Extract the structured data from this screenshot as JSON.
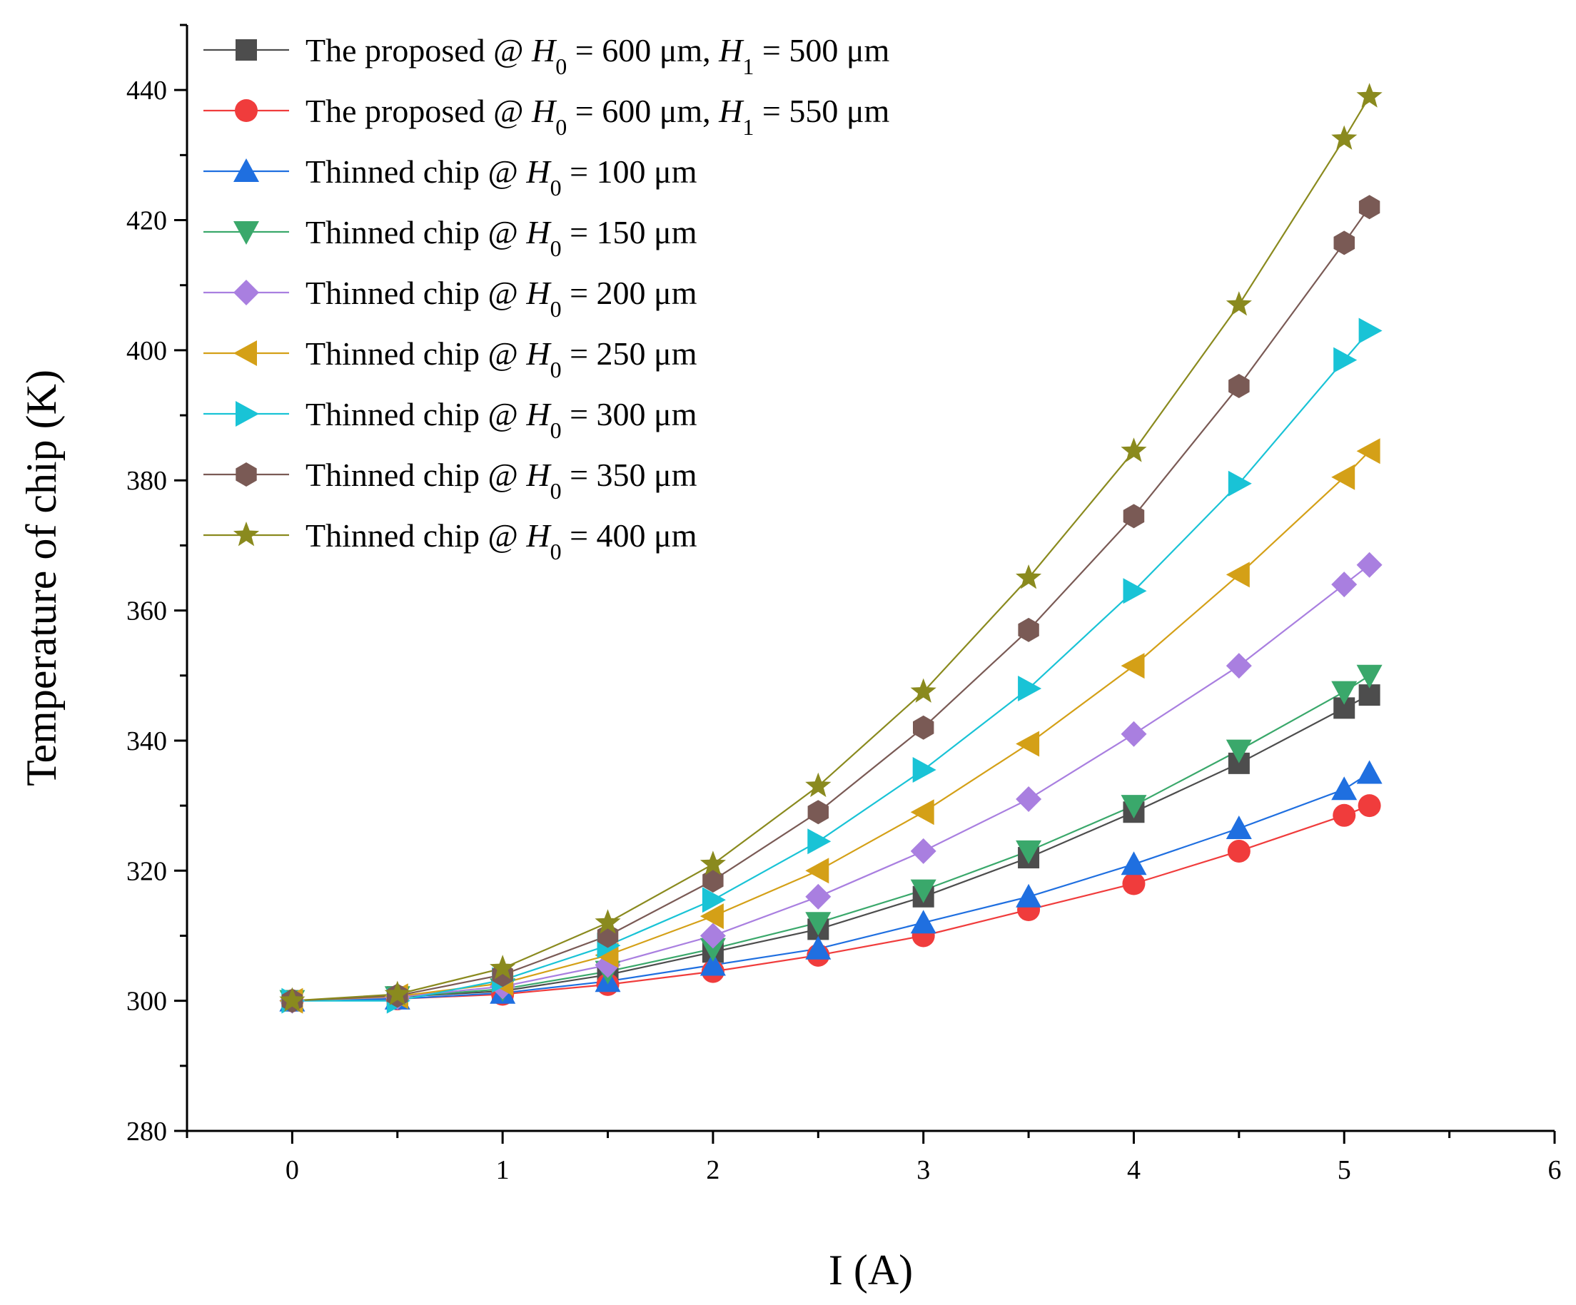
{
  "chart_data": {
    "type": "line",
    "xlabel": "I (A)",
    "ylabel": "Temperature of chip (K)",
    "xlim": [
      -0.5,
      6
    ],
    "ylim": [
      280,
      450
    ],
    "x_ticks": [
      0,
      1,
      2,
      3,
      4,
      5,
      6
    ],
    "x_tick_labels": [
      "0",
      "1",
      "2",
      "3",
      "4",
      "5",
      "6"
    ],
    "y_ticks": [
      280,
      300,
      320,
      340,
      360,
      380,
      400,
      420,
      440
    ],
    "y_tick_labels": [
      "280",
      "300",
      "320",
      "340",
      "360",
      "380",
      "400",
      "420",
      "440"
    ],
    "legend_position": "top-left",
    "x": [
      0,
      0.5,
      1,
      1.5,
      2,
      2.5,
      3,
      3.5,
      4,
      4.5,
      5,
      5.12
    ],
    "series": [
      {
        "name": "The proposed @ H0 = 600 μm, H1 = 500 μm",
        "label_parts": [
          "The proposed @ ",
          "H",
          "0",
          " = 600 μm, ",
          "H",
          "1",
          " = 500 μm"
        ],
        "marker": "square",
        "color": "#4d4d4d",
        "line_color": "#4d4d4d",
        "values": [
          300,
          300.6,
          301.5,
          304,
          307.5,
          311,
          316,
          322,
          329,
          336.5,
          345,
          347
        ]
      },
      {
        "name": "The proposed @ H0 = 600 μm, H1 = 550 μm",
        "label_parts": [
          "The proposed @ ",
          "H",
          "0",
          " = 600 μm, ",
          "H",
          "1",
          " = 550 μm"
        ],
        "marker": "circle",
        "color": "#f03c3c",
        "line_color": "#f03c3c",
        "values": [
          300,
          300.3,
          301,
          302.5,
          304.5,
          307,
          310,
          314,
          318,
          323,
          328.5,
          330
        ]
      },
      {
        "name": "Thinned chip @ H0 = 100 μm",
        "label_parts": [
          "Thinned chip @ ",
          "H",
          "0",
          " = 100 μm"
        ],
        "marker": "triangle-up",
        "color": "#1f6fe0",
        "line_color": "#1f6fe0",
        "values": [
          300,
          300.3,
          301.2,
          303,
          305.5,
          308,
          312,
          316,
          321,
          326.5,
          332.5,
          335
        ]
      },
      {
        "name": "Thinned chip @ H0 = 150 μm",
        "label_parts": [
          "Thinned chip @ ",
          "H",
          "0",
          " = 150 μm"
        ],
        "marker": "triangle-down",
        "color": "#3aa86b",
        "line_color": "#3aa86b",
        "values": [
          300,
          300.6,
          301.8,
          304.5,
          308,
          312,
          317,
          323,
          330,
          338.5,
          347.5,
          350
        ]
      },
      {
        "name": "Thinned chip @ H0 = 200 μm",
        "label_parts": [
          "Thinned chip @ ",
          "H",
          "0",
          " = 200 μm"
        ],
        "marker": "diamond",
        "color": "#a97fe0",
        "line_color": "#a97fe0",
        "values": [
          300,
          300.6,
          302.2,
          305.5,
          310,
          316,
          323,
          331,
          341,
          351.5,
          364,
          367
        ]
      },
      {
        "name": "Thinned chip @ H0 = 250 μm",
        "label_parts": [
          "Thinned chip @ ",
          "H",
          "0",
          " = 250 μm"
        ],
        "marker": "triangle-left",
        "color": "#d4a017",
        "line_color": "#d4a017",
        "values": [
          300,
          300.7,
          302.7,
          307,
          313,
          320,
          329,
          339.5,
          351.5,
          365.5,
          380.5,
          384.5
        ]
      },
      {
        "name": "Thinned chip @ H0 = 300 μm",
        "label_parts": [
          "Thinned chip @ ",
          "H",
          "0",
          " = 300 μm"
        ],
        "marker": "triangle-right",
        "color": "#19c3d6",
        "line_color": "#19c3d6",
        "values": [
          300,
          300,
          303.2,
          308.5,
          315.5,
          324.5,
          335.5,
          348,
          363,
          379.5,
          398.5,
          403
        ]
      },
      {
        "name": "Thinned chip @ H0 = 350 μm",
        "label_parts": [
          "Thinned chip @ ",
          "H",
          "0",
          " = 350 μm"
        ],
        "marker": "hexagon",
        "color": "#7a5a55",
        "line_color": "#7a5a55",
        "values": [
          300,
          300.8,
          304,
          310,
          318.5,
          329,
          342,
          357,
          374.5,
          394.5,
          416.5,
          422
        ]
      },
      {
        "name": "Thinned chip @ H0 = 400 μm",
        "label_parts": [
          "Thinned chip @ ",
          "H",
          "0",
          " = 400 μm"
        ],
        "marker": "star",
        "color": "#8a8a1e",
        "line_color": "#8a8a1e",
        "values": [
          300,
          301,
          305,
          312,
          321,
          333,
          347.5,
          365,
          384.5,
          407,
          432.5,
          439
        ]
      }
    ]
  }
}
